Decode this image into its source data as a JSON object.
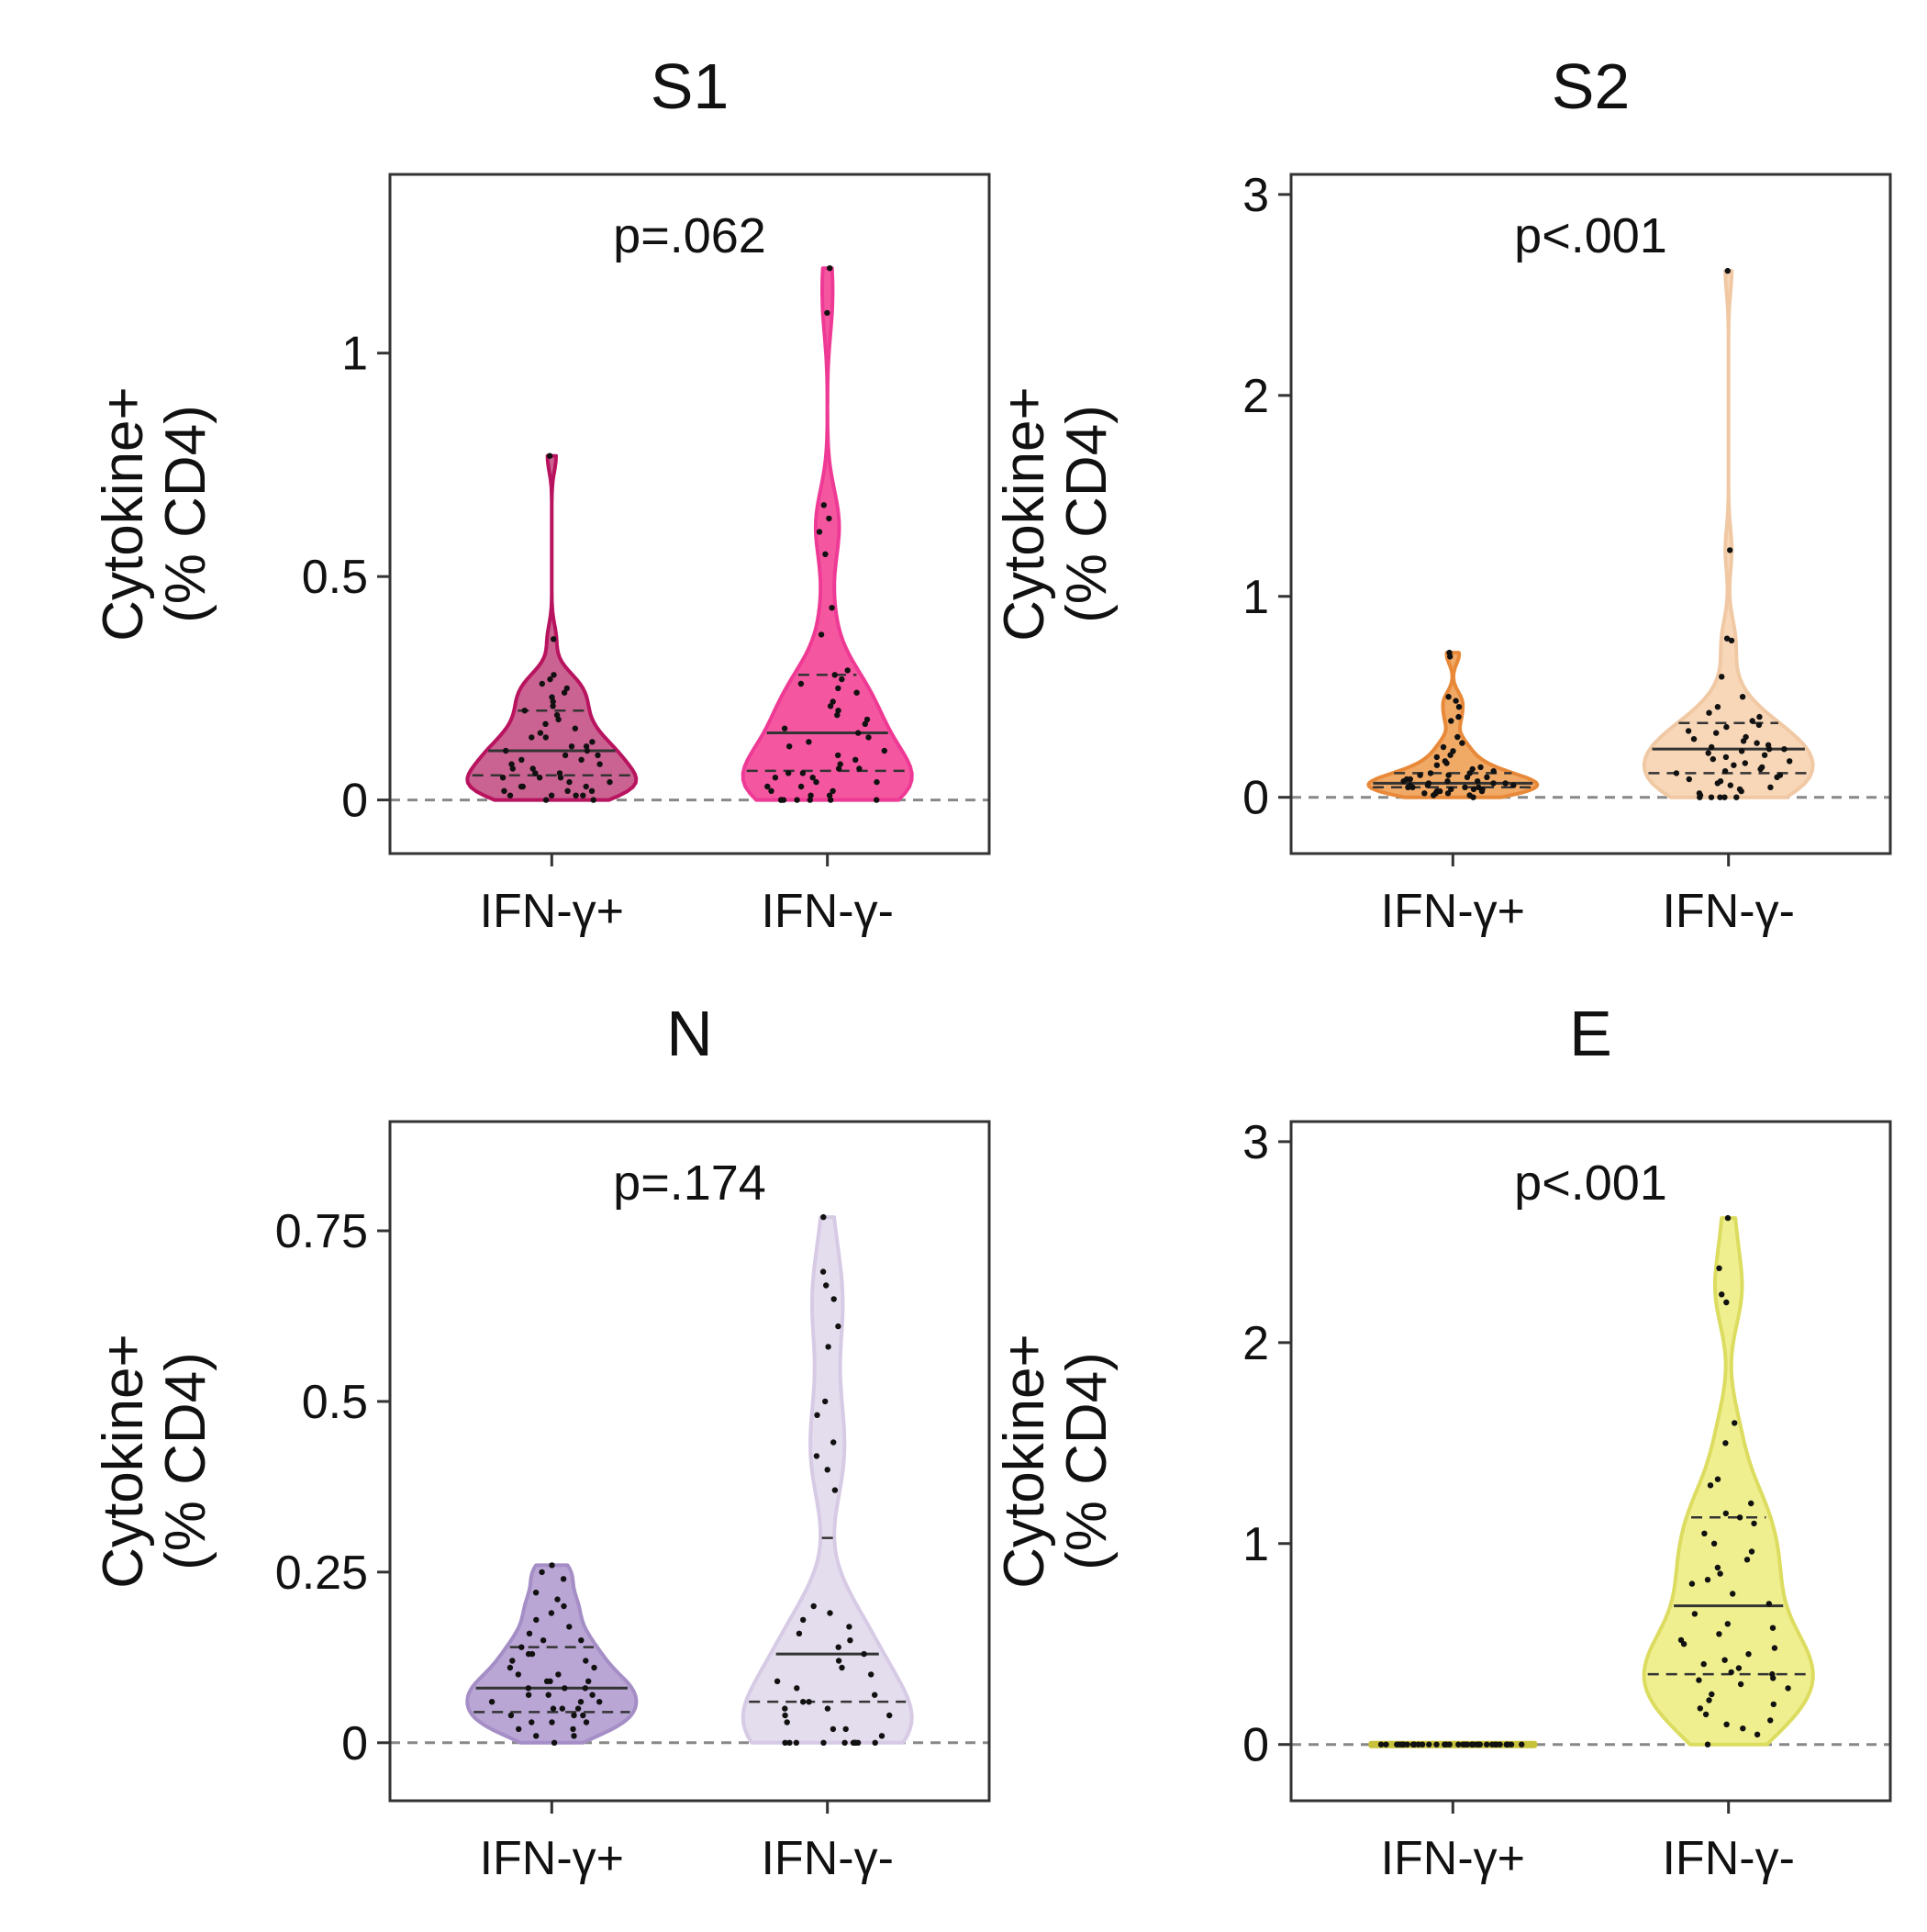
{
  "chart_data": [
    {
      "type": "violin",
      "title": "S1",
      "ylabel": [
        "Cytokine+",
        "(% CD4)"
      ],
      "categories": [
        "IFN-γ+",
        "IFN-γ-"
      ],
      "ylim": [
        -0.12,
        1.4
      ],
      "yticks": [
        0,
        0.5,
        1
      ],
      "ytick_labels": [
        "0",
        "0.5",
        "1"
      ],
      "annotation": "p=.062",
      "zero_line": true,
      "series": [
        {
          "category": "IFN-γ+",
          "fill": "#c2487f",
          "edge": "#b8135f",
          "alpha": 0.85,
          "min": 0.0,
          "max": 0.77,
          "q1": 0.055,
          "median": 0.11,
          "q3": 0.2,
          "points": [
            0.77,
            0.36,
            0.28,
            0.27,
            0.26,
            0.25,
            0.24,
            0.23,
            0.22,
            0.21,
            0.2,
            0.19,
            0.18,
            0.17,
            0.16,
            0.15,
            0.14,
            0.14,
            0.13,
            0.12,
            0.12,
            0.11,
            0.11,
            0.1,
            0.1,
            0.09,
            0.09,
            0.08,
            0.08,
            0.07,
            0.07,
            0.06,
            0.06,
            0.05,
            0.05,
            0.05,
            0.04,
            0.04,
            0.03,
            0.03,
            0.03,
            0.02,
            0.02,
            0.02,
            0.01,
            0.01,
            0.01,
            0.01,
            0.0,
            0.0
          ]
        },
        {
          "category": "IFN-γ-",
          "fill": "#f2398f",
          "edge": "#ef3a95",
          "alpha": 0.85,
          "min": 0.0,
          "max": 1.19,
          "q1": 0.065,
          "median": 0.15,
          "q3": 0.28,
          "points": [
            1.19,
            1.09,
            0.66,
            0.63,
            0.6,
            0.55,
            0.43,
            0.37,
            0.29,
            0.28,
            0.27,
            0.26,
            0.25,
            0.24,
            0.22,
            0.21,
            0.2,
            0.19,
            0.18,
            0.17,
            0.16,
            0.15,
            0.14,
            0.13,
            0.12,
            0.11,
            0.1,
            0.09,
            0.08,
            0.07,
            0.07,
            0.06,
            0.06,
            0.05,
            0.05,
            0.04,
            0.04,
            0.03,
            0.03,
            0.02,
            0.02,
            0.01,
            0.01,
            0.0,
            0.0,
            0.0,
            0.0,
            0.0,
            0.0,
            0.0
          ]
        }
      ]
    },
    {
      "type": "violin",
      "title": "S2",
      "ylabel": [
        "Cytokine+",
        "(% CD4)"
      ],
      "categories": [
        "IFN-γ+",
        "IFN-γ-"
      ],
      "ylim": [
        -0.28,
        3.1
      ],
      "yticks": [
        0,
        1,
        2,
        3
      ],
      "ytick_labels": [
        "0",
        "1",
        "2",
        "3"
      ],
      "annotation": "p<.001",
      "zero_line": true,
      "series": [
        {
          "category": "IFN-γ+",
          "fill": "#f0a055",
          "edge": "#e8893a",
          "alpha": 0.9,
          "min": 0.0,
          "max": 0.72,
          "q1": 0.05,
          "median": 0.07,
          "q3": 0.12,
          "points": [
            0.72,
            0.7,
            0.5,
            0.48,
            0.45,
            0.4,
            0.38,
            0.3,
            0.27,
            0.25,
            0.23,
            0.21,
            0.2,
            0.18,
            0.17,
            0.16,
            0.15,
            0.14,
            0.13,
            0.12,
            0.12,
            0.11,
            0.11,
            0.1,
            0.1,
            0.09,
            0.09,
            0.08,
            0.08,
            0.08,
            0.07,
            0.07,
            0.07,
            0.06,
            0.06,
            0.06,
            0.05,
            0.05,
            0.05,
            0.05,
            0.04,
            0.04,
            0.04,
            0.03,
            0.03,
            0.03,
            0.02,
            0.02,
            0.02,
            0.01,
            0.01,
            0.0
          ]
        },
        {
          "category": "IFN-γ-",
          "fill": "#f7d3b0",
          "edge": "#f0c9a4",
          "alpha": 0.9,
          "min": 0.0,
          "max": 2.62,
          "q1": 0.12,
          "median": 0.24,
          "q3": 0.37,
          "points": [
            2.62,
            1.23,
            0.79,
            0.78,
            0.6,
            0.5,
            0.45,
            0.42,
            0.4,
            0.38,
            0.36,
            0.35,
            0.33,
            0.32,
            0.3,
            0.29,
            0.28,
            0.27,
            0.26,
            0.25,
            0.24,
            0.24,
            0.23,
            0.22,
            0.21,
            0.2,
            0.19,
            0.18,
            0.17,
            0.16,
            0.15,
            0.14,
            0.13,
            0.12,
            0.11,
            0.1,
            0.09,
            0.08,
            0.07,
            0.06,
            0.05,
            0.04,
            0.03,
            0.02,
            0.01,
            0.0,
            0.0,
            0.0,
            0.0,
            0.0
          ]
        }
      ]
    },
    {
      "type": "violin",
      "title": "N",
      "ylabel": [
        "Cytokine+",
        "(% CD4)"
      ],
      "categories": [
        "IFN-γ+",
        "IFN-γ-"
      ],
      "ylim": [
        -0.085,
        0.91
      ],
      "yticks": [
        0,
        0.25,
        0.5,
        0.75
      ],
      "ytick_labels": [
        "0",
        "0.25",
        "0.5",
        "0.75"
      ],
      "annotation": "p=.174",
      "zero_line": true,
      "series": [
        {
          "category": "IFN-γ+",
          "fill": "#b39cd0",
          "edge": "#a58ec6",
          "alpha": 0.9,
          "min": 0.0,
          "max": 0.26,
          "q1": 0.045,
          "median": 0.08,
          "q3": 0.14,
          "points": [
            0.26,
            0.25,
            0.24,
            0.22,
            0.21,
            0.2,
            0.19,
            0.18,
            0.17,
            0.16,
            0.15,
            0.15,
            0.14,
            0.13,
            0.13,
            0.12,
            0.12,
            0.11,
            0.11,
            0.1,
            0.1,
            0.09,
            0.09,
            0.09,
            0.08,
            0.08,
            0.08,
            0.07,
            0.07,
            0.07,
            0.06,
            0.06,
            0.06,
            0.05,
            0.05,
            0.05,
            0.04,
            0.04,
            0.04,
            0.03,
            0.03,
            0.03,
            0.02,
            0.02,
            0.01,
            0.01,
            0.0
          ]
        },
        {
          "category": "IFN-γ-",
          "fill": "#e3dbec",
          "edge": "#d6cae5",
          "alpha": 0.95,
          "min": 0.0,
          "max": 0.77,
          "q1": 0.06,
          "median": 0.13,
          "q3": 0.3,
          "points": [
            0.77,
            0.69,
            0.67,
            0.65,
            0.61,
            0.58,
            0.5,
            0.48,
            0.44,
            0.42,
            0.4,
            0.37,
            0.2,
            0.19,
            0.18,
            0.17,
            0.16,
            0.15,
            0.14,
            0.13,
            0.12,
            0.11,
            0.1,
            0.09,
            0.08,
            0.07,
            0.06,
            0.06,
            0.05,
            0.05,
            0.04,
            0.04,
            0.03,
            0.02,
            0.02,
            0.01,
            0.0,
            0.0,
            0.0,
            0.0,
            0.0,
            0.0,
            0.0,
            0.0,
            0.0,
            0.0,
            0.0
          ]
        }
      ]
    },
    {
      "type": "violin",
      "title": "E",
      "ylabel": [
        "Cytokine+",
        "(% CD4)"
      ],
      "categories": [
        "IFN-γ+",
        "IFN-γ-"
      ],
      "ylim": [
        -0.28,
        3.1
      ],
      "yticks": [
        0,
        1,
        2,
        3
      ],
      "ytick_labels": [
        "0",
        "1",
        "2",
        "3"
      ],
      "annotation": "p<.001",
      "zero_line": true,
      "series": [
        {
          "category": "IFN-γ+",
          "fill": "#c8c23a",
          "edge": "#c8c23a",
          "alpha": 1.0,
          "min": 0.0,
          "max": 0.0,
          "q1": 0.0,
          "median": 0.0,
          "q3": 0.0,
          "points": [
            0,
            0,
            0,
            0,
            0,
            0,
            0,
            0,
            0,
            0,
            0,
            0,
            0,
            0,
            0,
            0,
            0,
            0,
            0,
            0,
            0,
            0,
            0,
            0,
            0,
            0,
            0,
            0,
            0,
            0,
            0,
            0,
            0,
            0,
            0,
            0,
            0,
            0,
            0,
            0
          ]
        },
        {
          "category": "IFN-γ-",
          "fill": "#eeee8a",
          "edge": "#dcdc60",
          "alpha": 0.95,
          "min": 0.0,
          "max": 2.62,
          "q1": 0.35,
          "median": 0.69,
          "q3": 1.13,
          "points": [
            2.62,
            2.37,
            2.24,
            2.2,
            1.6,
            1.5,
            1.32,
            1.29,
            1.2,
            1.15,
            1.13,
            1.1,
            1.05,
            1.0,
            0.96,
            0.92,
            0.88,
            0.85,
            0.82,
            0.8,
            0.75,
            0.7,
            0.65,
            0.6,
            0.58,
            0.55,
            0.52,
            0.5,
            0.48,
            0.45,
            0.42,
            0.4,
            0.38,
            0.36,
            0.35,
            0.33,
            0.32,
            0.3,
            0.28,
            0.25,
            0.22,
            0.2,
            0.18,
            0.15,
            0.12,
            0.1,
            0.08,
            0.05,
            0.0
          ]
        }
      ]
    }
  ]
}
